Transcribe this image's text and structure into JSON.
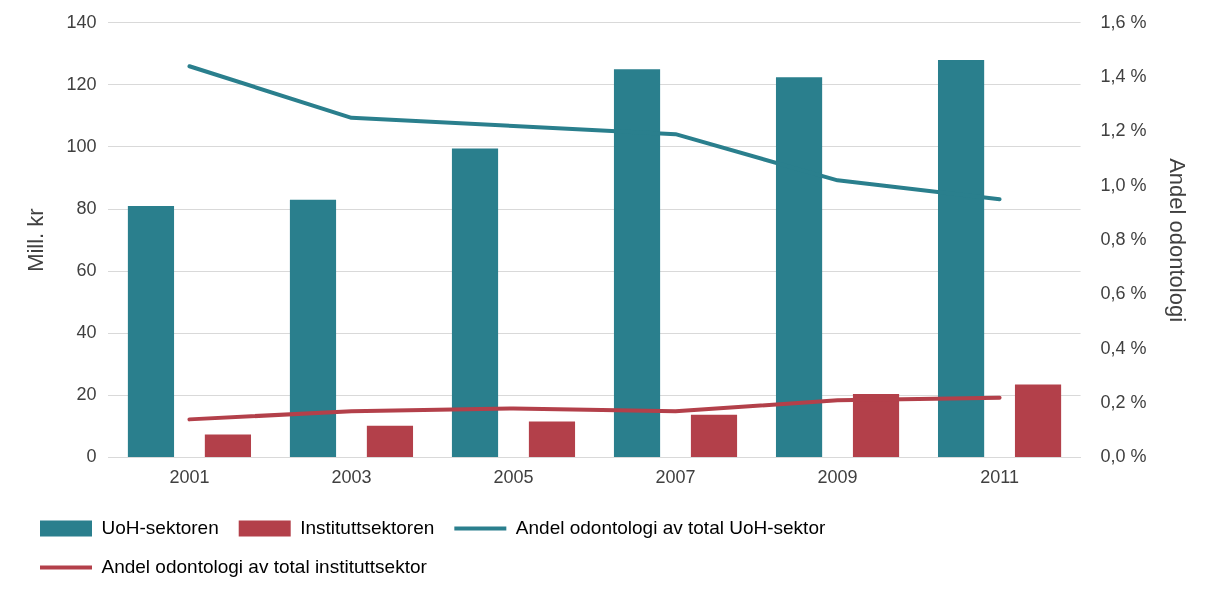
{
  "chart_data": {
    "type": "bar",
    "categories": [
      "2001",
      "2003",
      "2005",
      "2007",
      "2009",
      "2011"
    ],
    "ylabel": "Mill. kr",
    "y2label": "Andel odontologi",
    "ylim": [
      0,
      140
    ],
    "yticks": [
      0,
      20,
      40,
      60,
      80,
      100,
      120,
      140
    ],
    "y2lim": [
      0,
      1.6
    ],
    "y2ticks": [
      {
        "value": 0,
        "label": "0,0 %"
      },
      {
        "value": 0.2,
        "label": "0,2 %"
      },
      {
        "value": 0.4,
        "label": "0,4 %"
      },
      {
        "value": 0.6,
        "label": "0,6 %"
      },
      {
        "value": 0.8,
        "label": "0,8 %"
      },
      {
        "value": 1.0,
        "label": "1,0 %"
      },
      {
        "value": 1.2,
        "label": "1,2 %"
      },
      {
        "value": 1.4,
        "label": "1,4 %"
      },
      {
        "value": 1.6,
        "label": "1,6 %"
      }
    ],
    "grid": "y",
    "legend": "bottom",
    "marker": "none",
    "series": [
      {
        "name": "UoH-sektoren",
        "color": "#2a7f8d",
        "values": [
          81,
          83,
          99.5,
          125,
          122.5,
          128
        ]
      },
      {
        "name": "Instituttsektoren",
        "color": "#b3404a",
        "values": [
          7.4,
          10.2,
          11.6,
          13.7,
          20.4,
          23.5
        ]
      },
      {
        "name": "Andel odontologi av total UoH-sektor",
        "type": "line",
        "axis": "y2",
        "color": "#2a7f8d",
        "values": [
          1.44,
          1.25,
          1.22,
          1.19,
          1.02,
          0.95
        ]
      },
      {
        "name": "Andel odontologi av total instituttsektor",
        "type": "line",
        "axis": "y2",
        "color": "#b3404a",
        "values": [
          0.14,
          0.17,
          0.18,
          0.17,
          0.21,
          0.22
        ]
      }
    ]
  }
}
